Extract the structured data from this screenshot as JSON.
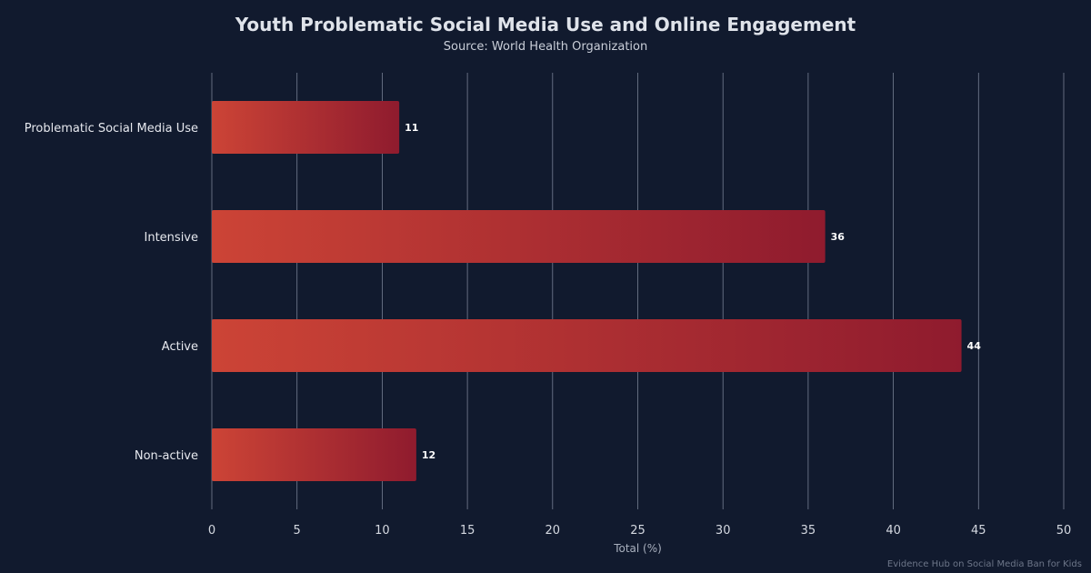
{
  "header": {
    "title": "Youth Problematic Social Media Use and Online Engagement",
    "subtitle": "Source: World Health Organization"
  },
  "footer": {
    "text": "Evidence Hub on Social Media Ban for Kids"
  },
  "colors": {
    "background": "#111a2e",
    "bar_start": "#cc4436",
    "bar_end": "#8f1b2e",
    "grid": "#8a93a6",
    "text": "#e6e8ee"
  },
  "chart_data": {
    "type": "bar",
    "orientation": "horizontal",
    "categories": [
      "Problematic Social Media Use",
      "Intensive",
      "Active",
      "Non-active"
    ],
    "values": [
      11,
      36,
      44,
      12
    ],
    "title": "Youth Problematic Social Media Use and Online Engagement",
    "subtitle": "Source: World Health Organization",
    "xlabel": "Total (%)",
    "ylabel": "",
    "xlim": [
      0,
      50
    ],
    "xticks": [
      0,
      5,
      10,
      15,
      20,
      25,
      30,
      35,
      40,
      45,
      50
    ],
    "grid": true,
    "legend": "none"
  }
}
